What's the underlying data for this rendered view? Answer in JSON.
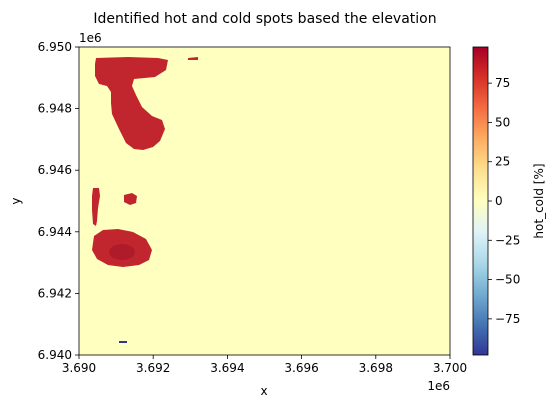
{
  "chart_data": {
    "type": "heatmap",
    "title": "Identified hot and cold spots based the elevation",
    "xlabel": "x",
    "ylabel": "y",
    "x_offset_label": "1e6",
    "y_offset_label": "1e6",
    "xlim": [
      3.69,
      3.7
    ],
    "ylim": [
      6.94,
      6.95
    ],
    "x_ticks": [
      {
        "value": 3.69,
        "label": "3.690"
      },
      {
        "value": 3.692,
        "label": "3.692"
      },
      {
        "value": 3.694,
        "label": "3.694"
      },
      {
        "value": 3.696,
        "label": "3.696"
      },
      {
        "value": 3.698,
        "label": "3.698"
      },
      {
        "value": 3.7,
        "label": "3.700"
      }
    ],
    "y_ticks": [
      {
        "value": 6.94,
        "label": "6.940"
      },
      {
        "value": 6.942,
        "label": "6.942"
      },
      {
        "value": 6.944,
        "label": "6.944"
      },
      {
        "value": 6.946,
        "label": "6.946"
      },
      {
        "value": 6.948,
        "label": "6.948"
      },
      {
        "value": 6.95,
        "label": "6.950"
      }
    ],
    "background_value": 0,
    "colorbar": {
      "label": "hot_cold [%]",
      "colormap": "RdYlBu_r",
      "range": [
        -98,
        98
      ],
      "ticks": [
        {
          "value": 75,
          "label": "75"
        },
        {
          "value": 50,
          "label": "50"
        },
        {
          "value": 25,
          "label": "25"
        },
        {
          "value": 0,
          "label": "0"
        },
        {
          "value": -25,
          "label": "−25"
        },
        {
          "value": -50,
          "label": "−50"
        },
        {
          "value": -75,
          "label": "−75"
        }
      ]
    },
    "regions": [
      {
        "name": "hot-spot-top-left",
        "value": 95,
        "center": [
          3.6912,
          6.9482
        ]
      },
      {
        "name": "hot-spot-small-top",
        "value": 95,
        "center": [
          3.6931,
          6.9496
        ]
      },
      {
        "name": "hot-spot-left-strip",
        "value": 95,
        "center": [
          3.6904,
          6.9447
        ]
      },
      {
        "name": "hot-spot-small-mid",
        "value": 95,
        "center": [
          3.6913,
          6.9452
        ]
      },
      {
        "name": "hot-spot-lower-blob",
        "value": 95,
        "center": [
          3.6911,
          6.9434
        ]
      },
      {
        "name": "hot-spot-lower-core",
        "value": 98,
        "center": [
          3.6911,
          6.9433
        ]
      },
      {
        "name": "cold-spot-bottom",
        "value": -95,
        "center": [
          3.6911,
          6.9404
        ]
      }
    ]
  }
}
